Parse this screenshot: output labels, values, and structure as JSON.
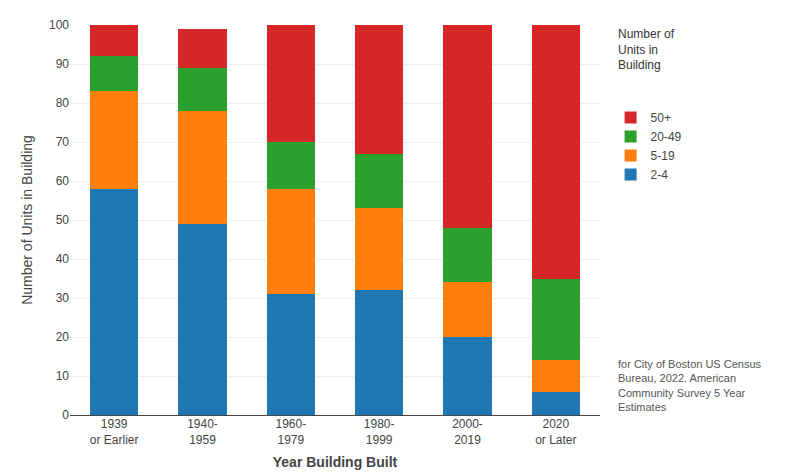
{
  "chart_data": {
    "type": "bar",
    "stacked": true,
    "categories": [
      "1939\nor Earlier",
      "1940-\n1959",
      "1960-\n1979",
      "1980-\n1999",
      "2000-\n2019",
      "2020\nor Later"
    ],
    "series": [
      {
        "name": "2-4",
        "values": [
          58,
          49,
          31,
          32,
          20,
          6
        ]
      },
      {
        "name": "5-19",
        "values": [
          25,
          29,
          27,
          21,
          14,
          8
        ]
      },
      {
        "name": "20-49",
        "values": [
          9,
          11,
          12,
          14,
          14,
          21
        ]
      },
      {
        "name": "50+",
        "values": [
          8,
          10,
          30,
          33,
          52,
          65
        ]
      }
    ],
    "xlabel": "Year Building Built",
    "ylabel": "Number of Units in Building",
    "ylim": [
      0,
      100
    ],
    "yticks": [
      0,
      10,
      20,
      30,
      40,
      50,
      60,
      70,
      80,
      90,
      100
    ],
    "grid": true,
    "legend": "right",
    "annotations": [
      "Number of\nUnits in\nBuilding",
      "for City of Boston US Census\nBureau, 2022. American\nCommunity Survey 5 Year\nEstimates"
    ]
  }
}
